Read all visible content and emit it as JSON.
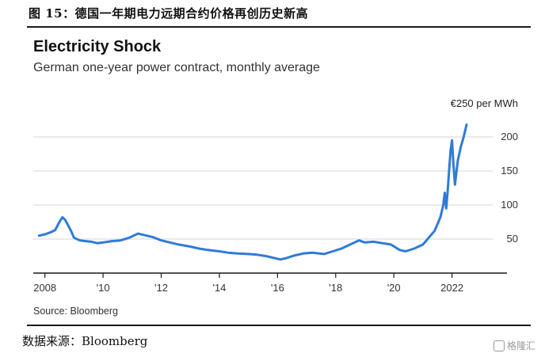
{
  "figure_caption": "图 15：德国一年期电力远期合约价格再创历史新高",
  "data_source": "数据来源：Bloomberg",
  "watermark": "格隆汇",
  "colors": {
    "line": "#2f7bd8",
    "grid": "#d6d6d6",
    "axis": "#1a1a1a"
  },
  "chart_data": {
    "type": "line",
    "title": "Electricity Shock",
    "subtitle": "German one-year power contract, monthly average",
    "unit_label": "€250 per MWh",
    "source": "Source: Bloomberg",
    "xlim": [
      2007.6,
      2023.4
    ],
    "ylim": [
      0,
      250
    ],
    "yticks": [
      50,
      100,
      150,
      200
    ],
    "xticks": [
      {
        "value": 2008,
        "label": "2008"
      },
      {
        "value": 2010,
        "label": "'10"
      },
      {
        "value": 2012,
        "label": "'12"
      },
      {
        "value": 2014,
        "label": "'14"
      },
      {
        "value": 2016,
        "label": "'16"
      },
      {
        "value": 2018,
        "label": "'18"
      },
      {
        "value": 2020,
        "label": "'20"
      },
      {
        "value": 2022,
        "label": "2022"
      }
    ],
    "grid": true,
    "series": [
      {
        "x": [
          2007.8,
          2008.0,
          2008.2,
          2008.35,
          2008.5,
          2008.6,
          2008.7,
          2008.8,
          2008.9,
          2009.0,
          2009.2,
          2009.4,
          2009.6,
          2009.8,
          2010.0,
          2010.3,
          2010.6,
          2010.9,
          2011.2,
          2011.4,
          2011.7,
          2012.0,
          2012.3,
          2012.6,
          2013.0,
          2013.3,
          2013.6,
          2014.0,
          2014.3,
          2014.6,
          2015.0,
          2015.3,
          2015.6,
          2015.9,
          2016.1,
          2016.3,
          2016.6,
          2016.9,
          2017.2,
          2017.6,
          2017.9,
          2018.2,
          2018.5,
          2018.8,
          2019.0,
          2019.3,
          2019.6,
          2019.9,
          2020.2,
          2020.4,
          2020.7,
          2021.0,
          2021.2,
          2021.4,
          2021.5,
          2021.6,
          2021.7,
          2021.75,
          2021.8,
          2021.85,
          2021.9,
          2021.95,
          2022.0,
          2022.05,
          2022.1,
          2022.2,
          2022.3,
          2022.4,
          2022.5
        ],
        "y": [
          55,
          57,
          60,
          63,
          75,
          82,
          78,
          70,
          62,
          52,
          48,
          47,
          46,
          44,
          45,
          47,
          48,
          52,
          58,
          56,
          53,
          48,
          45,
          42,
          39,
          36,
          34,
          32,
          30,
          29,
          28,
          27,
          25,
          22,
          20,
          22,
          26,
          29,
          30,
          28,
          32,
          36,
          42,
          48,
          45,
          46,
          44,
          42,
          34,
          32,
          36,
          42,
          52,
          62,
          72,
          82,
          100,
          118,
          95,
          120,
          150,
          180,
          195,
          160,
          130,
          165,
          185,
          200,
          218
        ]
      }
    ]
  }
}
